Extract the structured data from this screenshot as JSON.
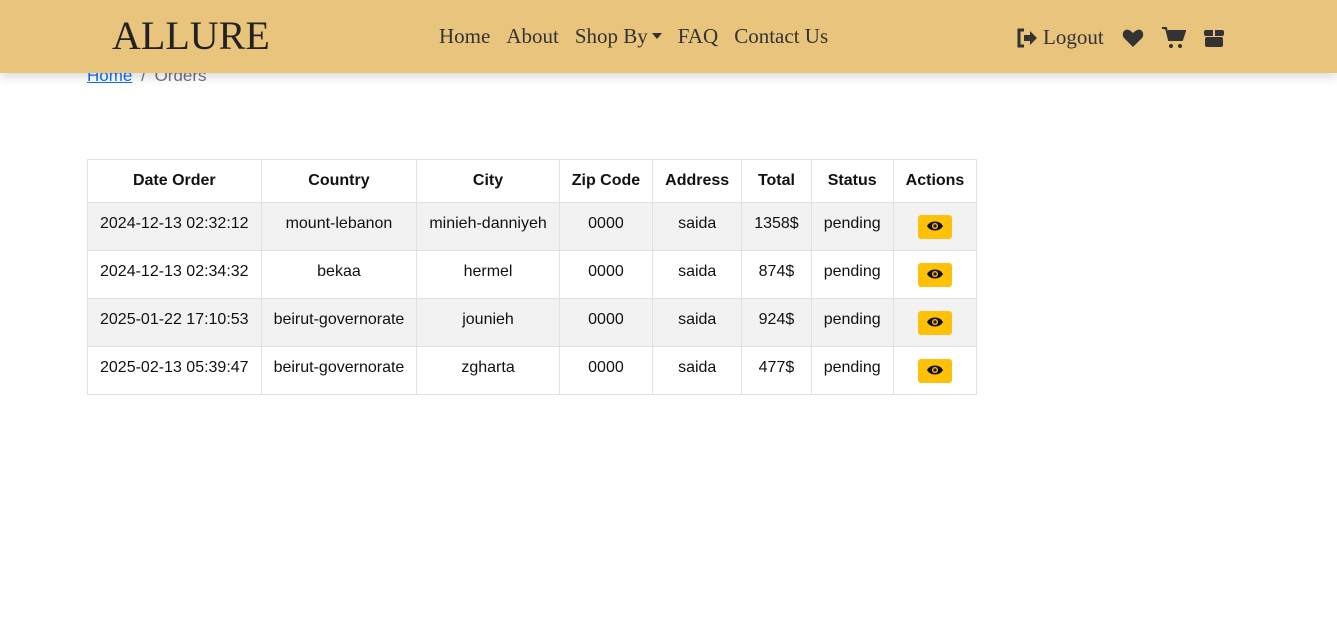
{
  "brand": "ALLURE",
  "nav": {
    "links": [
      "Home",
      "About",
      "Shop By",
      "FAQ",
      "Contact Us"
    ],
    "logout": "Logout"
  },
  "breadcrumb": {
    "home": "Home",
    "separator": "/",
    "current": "Orders"
  },
  "table": {
    "headers": [
      "Date Order",
      "Country",
      "City",
      "Zip Code",
      "Address",
      "Total",
      "Status",
      "Actions"
    ],
    "rows": [
      [
        "2024-12-13 02:32:12",
        "mount-lebanon",
        "minieh-danniyeh",
        "0000",
        "saida",
        "1358$",
        "pending"
      ],
      [
        "2024-12-13 02:34:32",
        "bekaa",
        "hermel",
        "0000",
        "saida",
        "874$",
        "pending"
      ],
      [
        "2025-01-22 17:10:53",
        "beirut-governorate",
        "jounieh",
        "0000",
        "saida",
        "924$",
        "pending"
      ],
      [
        "2025-02-13 05:39:47",
        "beirut-governorate",
        "zgharta",
        "0000",
        "saida",
        "477$",
        "pending"
      ]
    ]
  },
  "colors": {
    "navbar": "#e9c47d",
    "action_button": "#ffc107",
    "link": "#0d6efd"
  }
}
